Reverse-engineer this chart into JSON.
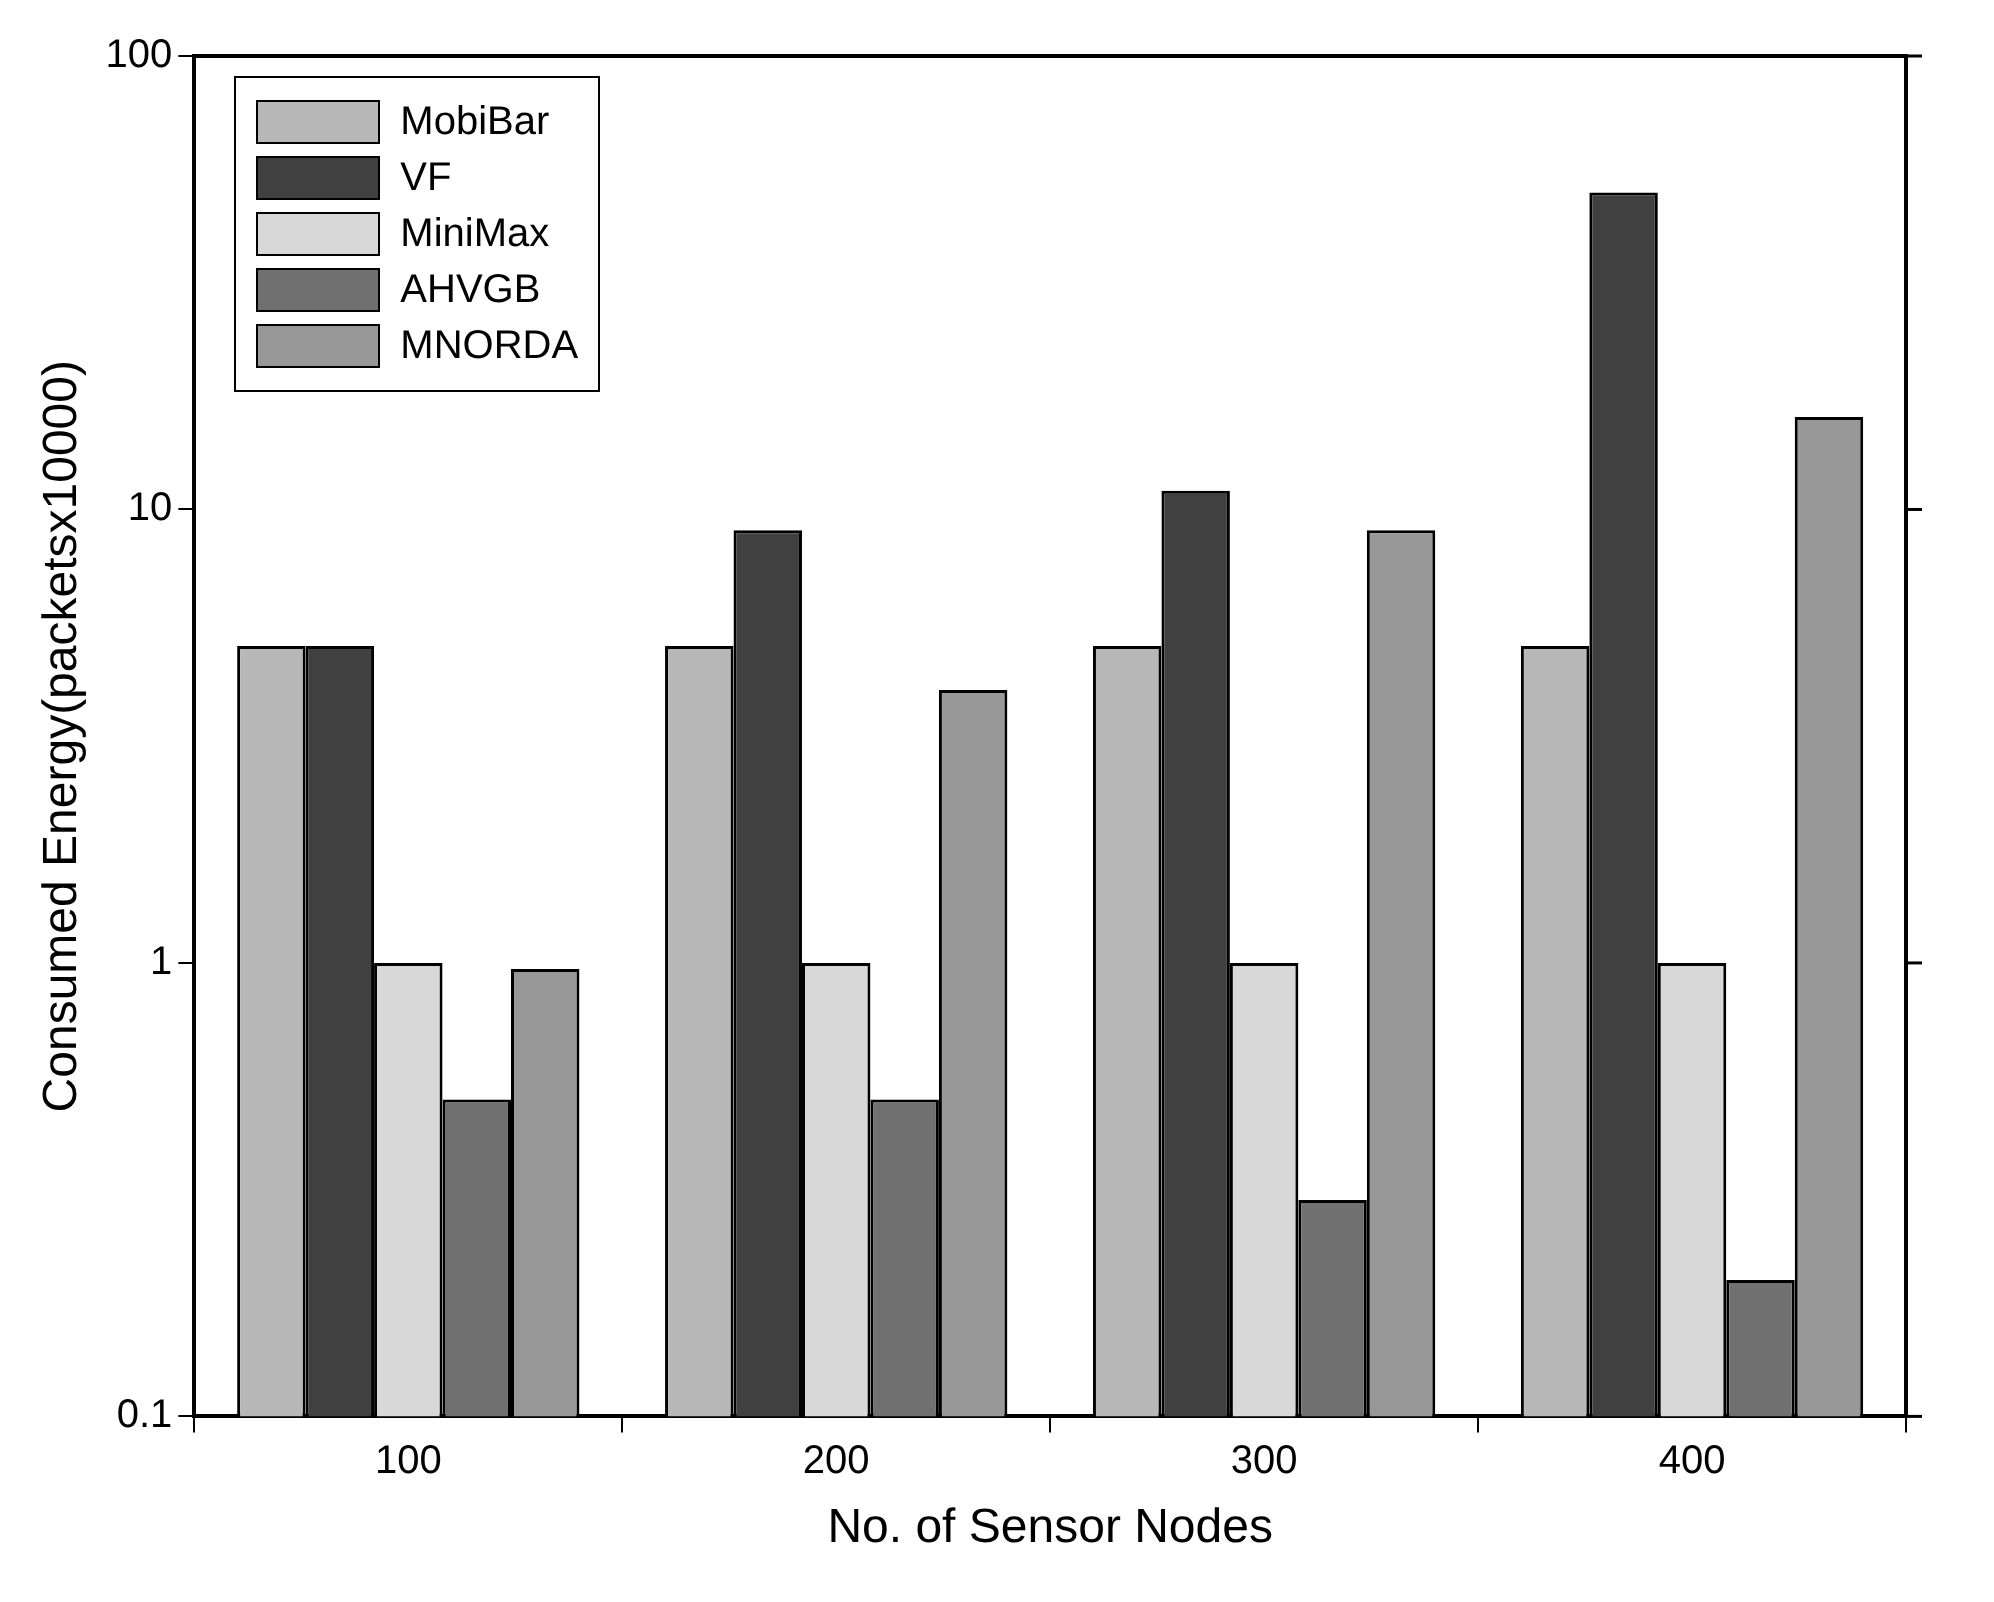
{
  "chart_data": {
    "type": "bar",
    "xlabel": "No. of Sensor Nodes",
    "ylabel": "Consumed Energy(packetsx10000)",
    "categories": [
      "100",
      "200",
      "300",
      "400"
    ],
    "series": [
      {
        "name": "MobiBar",
        "color": "#b8b8b8",
        "values": [
          5,
          5,
          5,
          5
        ]
      },
      {
        "name": "VF",
        "color": "#404040",
        "values": [
          5,
          9,
          11,
          50
        ]
      },
      {
        "name": "MiniMax",
        "color": "#d8d8d8",
        "values": [
          1,
          1,
          1,
          1
        ]
      },
      {
        "name": "AHVGB",
        "color": "#707070",
        "values": [
          0.5,
          0.5,
          0.3,
          0.2
        ]
      },
      {
        "name": "MNORDA",
        "color": "#989898",
        "values": [
          0.97,
          4,
          9,
          16
        ]
      }
    ],
    "log": "y",
    "ylim": [
      0.1,
      100
    ],
    "yticks": [
      0.1,
      1,
      10,
      100
    ],
    "grid": false,
    "legend": "top left"
  }
}
